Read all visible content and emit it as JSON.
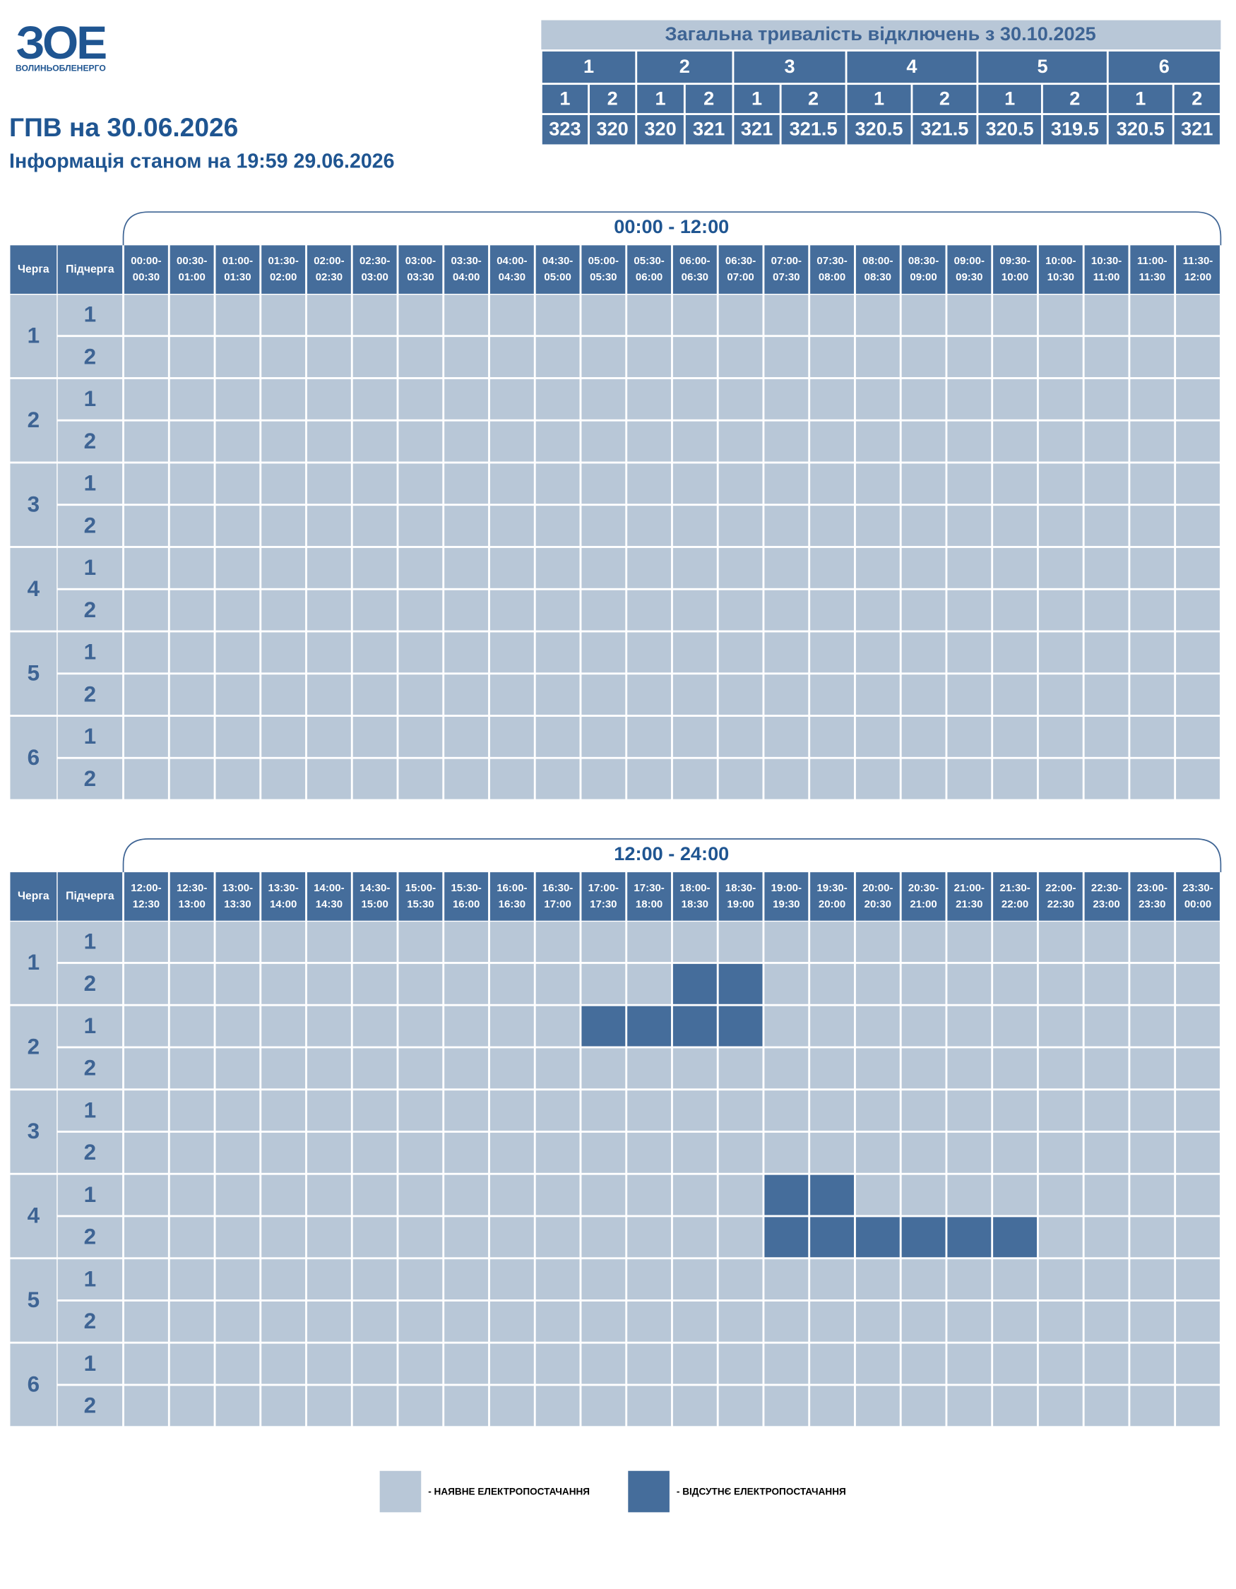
{
  "logo": {
    "mark": "ЗОЕ",
    "name": "ВОЛИНЬОБЛЕНЕРГО"
  },
  "header": {
    "title": "ГПВ на 30.06.2026",
    "info": "Інформація станом на 19:59 29.06.2026"
  },
  "summary": {
    "title": "Загальна тривалість відключень з 30.10.2025",
    "groups": [
      {
        "label": "1",
        "subs": [
          "1",
          "2"
        ],
        "values": [
          "323",
          "320"
        ]
      },
      {
        "label": "2",
        "subs": [
          "1",
          "2"
        ],
        "values": [
          "320",
          "321"
        ]
      },
      {
        "label": "3",
        "subs": [
          "1",
          "2"
        ],
        "values": [
          "321",
          "321.5"
        ]
      },
      {
        "label": "4",
        "subs": [
          "1",
          "2"
        ],
        "values": [
          "320.5",
          "321.5"
        ]
      },
      {
        "label": "5",
        "subs": [
          "1",
          "2"
        ],
        "values": [
          "320.5",
          "319.5"
        ]
      },
      {
        "label": "6",
        "subs": [
          "1",
          "2"
        ],
        "values": [
          "320.5",
          "321"
        ]
      }
    ]
  },
  "columns": {
    "queue": "Черга",
    "sub": "Підчерга"
  },
  "queues": [
    {
      "label": "1",
      "subs": [
        "1",
        "2"
      ]
    },
    {
      "label": "2",
      "subs": [
        "1",
        "2"
      ]
    },
    {
      "label": "3",
      "subs": [
        "1",
        "2"
      ]
    },
    {
      "label": "4",
      "subs": [
        "1",
        "2"
      ]
    },
    {
      "label": "5",
      "subs": [
        "1",
        "2"
      ]
    },
    {
      "label": "6",
      "subs": [
        "1",
        "2"
      ]
    }
  ],
  "tables": [
    {
      "range": "00:00 - 12:00",
      "slots": [
        [
          "00:00-",
          "00:30"
        ],
        [
          "00:30-",
          "01:00"
        ],
        [
          "01:00-",
          "01:30"
        ],
        [
          "01:30-",
          "02:00"
        ],
        [
          "02:00-",
          "02:30"
        ],
        [
          "02:30-",
          "03:00"
        ],
        [
          "03:00-",
          "03:30"
        ],
        [
          "03:30-",
          "04:00"
        ],
        [
          "04:00-",
          "04:30"
        ],
        [
          "04:30-",
          "05:00"
        ],
        [
          "05:00-",
          "05:30"
        ],
        [
          "05:30-",
          "06:00"
        ],
        [
          "06:00-",
          "06:30"
        ],
        [
          "06:30-",
          "07:00"
        ],
        [
          "07:00-",
          "07:30"
        ],
        [
          "07:30-",
          "08:00"
        ],
        [
          "08:00-",
          "08:30"
        ],
        [
          "08:30-",
          "09:00"
        ],
        [
          "09:00-",
          "09:30"
        ],
        [
          "09:30-",
          "10:00"
        ],
        [
          "10:00-",
          "10:30"
        ],
        [
          "10:30-",
          "11:00"
        ],
        [
          "11:00-",
          "11:30"
        ],
        [
          "11:30-",
          "12:00"
        ]
      ],
      "outages": [
        [
          0,
          0,
          0,
          0,
          0,
          0,
          0,
          0,
          0,
          0,
          0,
          0,
          0,
          0,
          0,
          0,
          0,
          0,
          0,
          0,
          0,
          0,
          0,
          0
        ],
        [
          0,
          0,
          0,
          0,
          0,
          0,
          0,
          0,
          0,
          0,
          0,
          0,
          0,
          0,
          0,
          0,
          0,
          0,
          0,
          0,
          0,
          0,
          0,
          0
        ],
        [
          0,
          0,
          0,
          0,
          0,
          0,
          0,
          0,
          0,
          0,
          0,
          0,
          0,
          0,
          0,
          0,
          0,
          0,
          0,
          0,
          0,
          0,
          0,
          0
        ],
        [
          0,
          0,
          0,
          0,
          0,
          0,
          0,
          0,
          0,
          0,
          0,
          0,
          0,
          0,
          0,
          0,
          0,
          0,
          0,
          0,
          0,
          0,
          0,
          0
        ],
        [
          0,
          0,
          0,
          0,
          0,
          0,
          0,
          0,
          0,
          0,
          0,
          0,
          0,
          0,
          0,
          0,
          0,
          0,
          0,
          0,
          0,
          0,
          0,
          0
        ],
        [
          0,
          0,
          0,
          0,
          0,
          0,
          0,
          0,
          0,
          0,
          0,
          0,
          0,
          0,
          0,
          0,
          0,
          0,
          0,
          0,
          0,
          0,
          0,
          0
        ],
        [
          0,
          0,
          0,
          0,
          0,
          0,
          0,
          0,
          0,
          0,
          0,
          0,
          0,
          0,
          0,
          0,
          0,
          0,
          0,
          0,
          0,
          0,
          0,
          0
        ],
        [
          0,
          0,
          0,
          0,
          0,
          0,
          0,
          0,
          0,
          0,
          0,
          0,
          0,
          0,
          0,
          0,
          0,
          0,
          0,
          0,
          0,
          0,
          0,
          0
        ],
        [
          0,
          0,
          0,
          0,
          0,
          0,
          0,
          0,
          0,
          0,
          0,
          0,
          0,
          0,
          0,
          0,
          0,
          0,
          0,
          0,
          0,
          0,
          0,
          0
        ],
        [
          0,
          0,
          0,
          0,
          0,
          0,
          0,
          0,
          0,
          0,
          0,
          0,
          0,
          0,
          0,
          0,
          0,
          0,
          0,
          0,
          0,
          0,
          0,
          0
        ],
        [
          0,
          0,
          0,
          0,
          0,
          0,
          0,
          0,
          0,
          0,
          0,
          0,
          0,
          0,
          0,
          0,
          0,
          0,
          0,
          0,
          0,
          0,
          0,
          0
        ],
        [
          0,
          0,
          0,
          0,
          0,
          0,
          0,
          0,
          0,
          0,
          0,
          0,
          0,
          0,
          0,
          0,
          0,
          0,
          0,
          0,
          0,
          0,
          0,
          0
        ]
      ]
    },
    {
      "range": "12:00 - 24:00",
      "slots": [
        [
          "12:00-",
          "12:30"
        ],
        [
          "12:30-",
          "13:00"
        ],
        [
          "13:00-",
          "13:30"
        ],
        [
          "13:30-",
          "14:00"
        ],
        [
          "14:00-",
          "14:30"
        ],
        [
          "14:30-",
          "15:00"
        ],
        [
          "15:00-",
          "15:30"
        ],
        [
          "15:30-",
          "16:00"
        ],
        [
          "16:00-",
          "16:30"
        ],
        [
          "16:30-",
          "17:00"
        ],
        [
          "17:00-",
          "17:30"
        ],
        [
          "17:30-",
          "18:00"
        ],
        [
          "18:00-",
          "18:30"
        ],
        [
          "18:30-",
          "19:00"
        ],
        [
          "19:00-",
          "19:30"
        ],
        [
          "19:30-",
          "20:00"
        ],
        [
          "20:00-",
          "20:30"
        ],
        [
          "20:30-",
          "21:00"
        ],
        [
          "21:00-",
          "21:30"
        ],
        [
          "21:30-",
          "22:00"
        ],
        [
          "22:00-",
          "22:30"
        ],
        [
          "22:30-",
          "23:00"
        ],
        [
          "23:00-",
          "23:30"
        ],
        [
          "23:30-",
          "00:00"
        ]
      ],
      "outages": [
        [
          0,
          0,
          0,
          0,
          0,
          0,
          0,
          0,
          0,
          0,
          0,
          0,
          0,
          0,
          0,
          0,
          0,
          0,
          0,
          0,
          0,
          0,
          0,
          0
        ],
        [
          0,
          0,
          0,
          0,
          0,
          0,
          0,
          0,
          0,
          0,
          0,
          0,
          1,
          1,
          0,
          0,
          0,
          0,
          0,
          0,
          0,
          0,
          0,
          0
        ],
        [
          0,
          0,
          0,
          0,
          0,
          0,
          0,
          0,
          0,
          0,
          1,
          1,
          1,
          1,
          0,
          0,
          0,
          0,
          0,
          0,
          0,
          0,
          0,
          0
        ],
        [
          0,
          0,
          0,
          0,
          0,
          0,
          0,
          0,
          0,
          0,
          0,
          0,
          0,
          0,
          0,
          0,
          0,
          0,
          0,
          0,
          0,
          0,
          0,
          0
        ],
        [
          0,
          0,
          0,
          0,
          0,
          0,
          0,
          0,
          0,
          0,
          0,
          0,
          0,
          0,
          0,
          0,
          0,
          0,
          0,
          0,
          0,
          0,
          0,
          0
        ],
        [
          0,
          0,
          0,
          0,
          0,
          0,
          0,
          0,
          0,
          0,
          0,
          0,
          0,
          0,
          0,
          0,
          0,
          0,
          0,
          0,
          0,
          0,
          0,
          0
        ],
        [
          0,
          0,
          0,
          0,
          0,
          0,
          0,
          0,
          0,
          0,
          0,
          0,
          0,
          0,
          1,
          1,
          0,
          0,
          0,
          0,
          0,
          0,
          0,
          0
        ],
        [
          0,
          0,
          0,
          0,
          0,
          0,
          0,
          0,
          0,
          0,
          0,
          0,
          0,
          0,
          1,
          1,
          1,
          1,
          1,
          1,
          0,
          0,
          0,
          0
        ],
        [
          0,
          0,
          0,
          0,
          0,
          0,
          0,
          0,
          0,
          0,
          0,
          0,
          0,
          0,
          0,
          0,
          0,
          0,
          0,
          0,
          0,
          0,
          0,
          0
        ],
        [
          0,
          0,
          0,
          0,
          0,
          0,
          0,
          0,
          0,
          0,
          0,
          0,
          0,
          0,
          0,
          0,
          0,
          0,
          0,
          0,
          0,
          0,
          0,
          0
        ],
        [
          0,
          0,
          0,
          0,
          0,
          0,
          0,
          0,
          0,
          0,
          0,
          0,
          0,
          0,
          0,
          0,
          0,
          0,
          0,
          0,
          0,
          0,
          0,
          0
        ],
        [
          0,
          0,
          0,
          0,
          0,
          0,
          0,
          0,
          0,
          0,
          0,
          0,
          0,
          0,
          0,
          0,
          0,
          0,
          0,
          0,
          0,
          0,
          0,
          0
        ]
      ]
    }
  ],
  "legend": {
    "available": "- НАЯВНЕ ЕЛЕКТРОПОСТАЧАННЯ",
    "absent": "- ВІДСУТНЄ ЕЛЕКТРОПОСТАЧАННЯ"
  }
}
